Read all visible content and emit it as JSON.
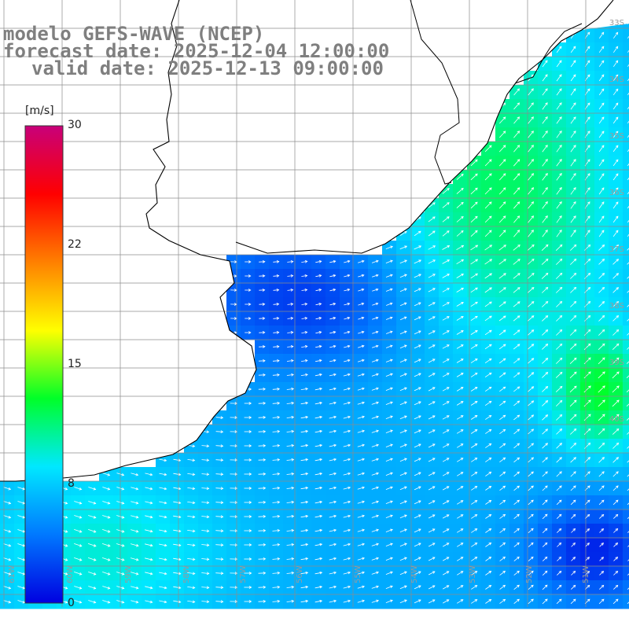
{
  "title": {
    "line1": "modelo GEFS-WAVE (NCEP)",
    "line2": "forecast date: 2025-12-04 12:00:00",
    "line3": "valid date: 2025-12-13 09:00:00"
  },
  "colorbar": {
    "unit": "[m/s]",
    "min": 0,
    "max": 30,
    "ticks": [
      "30",
      "22",
      "15",
      "8",
      "0"
    ],
    "tick_values": [
      30,
      22,
      15,
      8,
      0
    ],
    "colors": [
      "#0000e0",
      "#0078ff",
      "#00e8ff",
      "#00ff28",
      "#ffff00",
      "#ff8000",
      "#ff0000",
      "#c8007a"
    ]
  },
  "grid_labels": {
    "lat": [
      "33S",
      "34S",
      "35S",
      "36S",
      "37S",
      "38S",
      "39S",
      "40S"
    ],
    "lon": [
      "61W",
      "60W",
      "59W",
      "58W",
      "57W",
      "56W",
      "55W",
      "54W",
      "53W",
      "52W",
      "51W"
    ]
  },
  "map": {
    "land_color": "#ffffff",
    "coast_color": "#000000",
    "grid_color": "#8c8c8c",
    "arrow_color": "#ffffff"
  }
}
